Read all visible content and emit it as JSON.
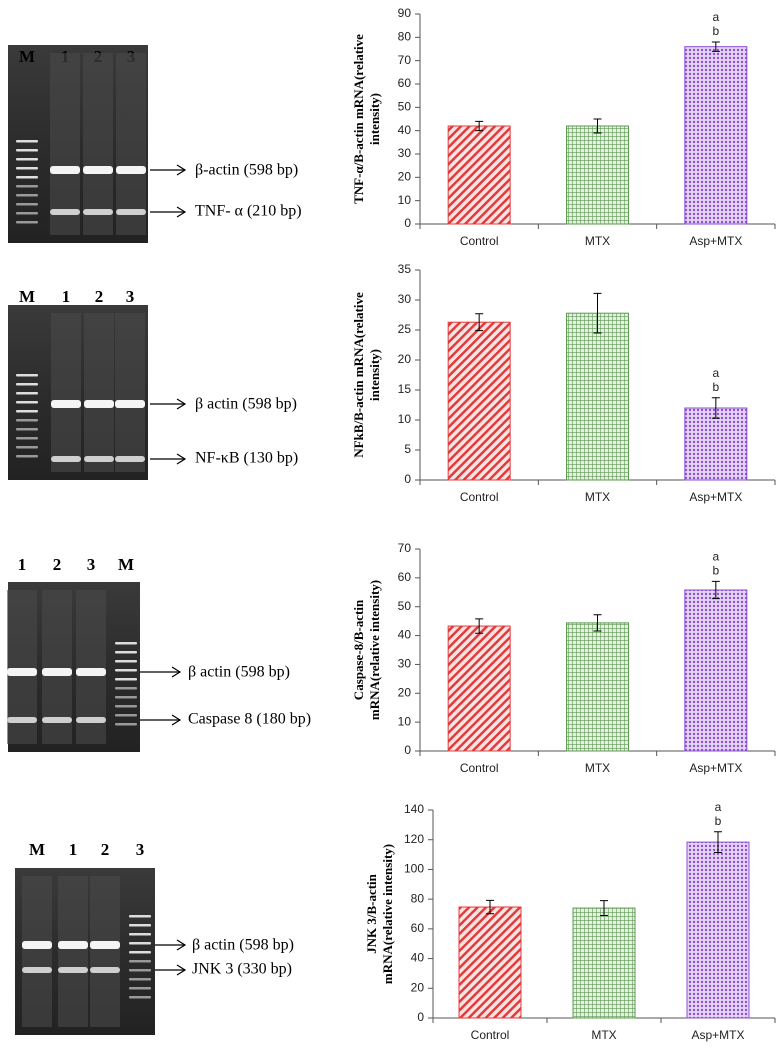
{
  "gels": [
    {
      "lanes": [
        "M",
        "1",
        "2",
        "3"
      ],
      "bands": [
        "β-actin (598 bp)",
        "TNF- α (210 bp)"
      ]
    },
    {
      "lanes": [
        "M",
        "1",
        "2",
        "3"
      ],
      "bands": [
        "β actin (598 bp)",
        "NF-κB (130 bp)"
      ]
    },
    {
      "lanes": [
        "1",
        "2",
        "3",
        "M"
      ],
      "bands": [
        "β actin (598 bp)",
        "Caspase 8 (180 bp)"
      ]
    },
    {
      "lanes": [
        "M",
        "1",
        "2",
        "3"
      ],
      "bands": [
        "β actin (598 bp)",
        "JNK 3 (330 bp)"
      ]
    }
  ],
  "chart_data": [
    {
      "type": "bar",
      "ylabel": [
        "TNF-α/Β-actin mRNA(relative",
        "intensity)"
      ],
      "categories": [
        "Control",
        "MTX",
        "Asp+MTX"
      ],
      "values": [
        42,
        42,
        76
      ],
      "errors": [
        2,
        3,
        2
      ],
      "colors": [
        "#e03c3c",
        "#5f9a52",
        "#8d4fd0"
      ],
      "annotations": [
        "a",
        "b"
      ],
      "ylim": [
        0,
        90
      ],
      "yticks": [
        0,
        10,
        20,
        30,
        40,
        50,
        60,
        70,
        80,
        90
      ]
    },
    {
      "type": "bar",
      "ylabel": [
        "NFkB/Β-actin mRNA(relative",
        "intensity)"
      ],
      "categories": [
        "Control",
        "MTX",
        "Asp+MTX"
      ],
      "values": [
        26.3,
        27.8,
        12
      ],
      "errors": [
        1.4,
        3.3,
        1.7
      ],
      "colors": [
        "#e03c3c",
        "#5f9a52",
        "#8d4fd0"
      ],
      "annotations": [
        "a",
        "b"
      ],
      "ylim": [
        0,
        35
      ],
      "yticks": [
        0,
        5,
        10,
        15,
        20,
        25,
        30,
        35
      ]
    },
    {
      "type": "bar",
      "ylabel": [
        "Caspase-8/Β-actin",
        "mRNA(relative intensity)"
      ],
      "categories": [
        "Control",
        "MTX",
        "Asp+MTX"
      ],
      "values": [
        43.3,
        44.4,
        55.8
      ],
      "errors": [
        2.5,
        2.8,
        3
      ],
      "colors": [
        "#e03c3c",
        "#5f9a52",
        "#8d4fd0"
      ],
      "annotations": [
        "a",
        "b"
      ],
      "ylim": [
        0,
        70
      ],
      "yticks": [
        0,
        10,
        20,
        30,
        40,
        50,
        60,
        70
      ]
    },
    {
      "type": "bar",
      "ylabel": [
        "JNK 3/Β-actin",
        "mRNA(relative intensity)"
      ],
      "categories": [
        "Control",
        "MTX",
        "Asp+MTX"
      ],
      "values": [
        74.7,
        74,
        118.4
      ],
      "errors": [
        4.5,
        5,
        7
      ],
      "colors": [
        "#e03c3c",
        "#5f9a52",
        "#8d4fd0"
      ],
      "annotations": [
        "a",
        "b"
      ],
      "ylim": [
        0,
        140
      ],
      "yticks": [
        0,
        20,
        40,
        60,
        80,
        100,
        120,
        140
      ]
    }
  ]
}
